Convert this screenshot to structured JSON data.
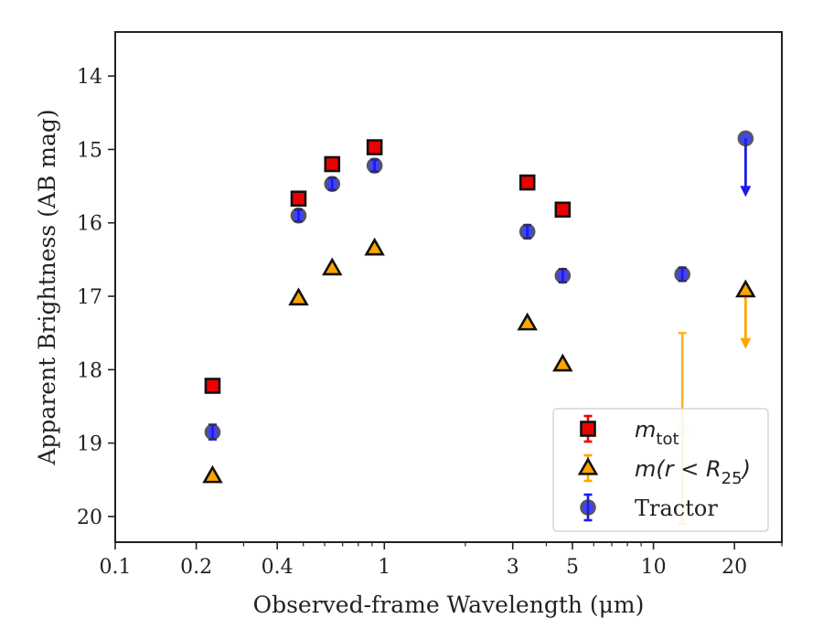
{
  "chart_data": {
    "type": "scatter",
    "title": "",
    "xlabel": "Observed-frame Wavelength (μm)",
    "ylabel": "Apparent Brightness (AB mag)",
    "xscale": "log",
    "xlim": [
      0.1,
      30
    ],
    "ylim": [
      20.35,
      13.4
    ],
    "y_inverted": true,
    "x_ticks": [
      {
        "value": 0.1,
        "label": "0.1"
      },
      {
        "value": 0.2,
        "label": "0.2"
      },
      {
        "value": 0.4,
        "label": "0.4"
      },
      {
        "value": 1,
        "label": "1"
      },
      {
        "value": 3,
        "label": "3"
      },
      {
        "value": 5,
        "label": "5"
      },
      {
        "value": 10,
        "label": "10"
      },
      {
        "value": 20,
        "label": "20"
      }
    ],
    "x_minor_ticks": [
      0.3,
      0.5,
      0.6,
      0.7,
      0.8,
      0.9,
      2,
      4,
      6,
      7,
      8,
      9,
      30
    ],
    "y_ticks": [
      {
        "value": 14,
        "label": "14"
      },
      {
        "value": 15,
        "label": "15"
      },
      {
        "value": 16,
        "label": "16"
      },
      {
        "value": 17,
        "label": "17"
      },
      {
        "value": 18,
        "label": "18"
      },
      {
        "value": 19,
        "label": "19"
      },
      {
        "value": 20,
        "label": "20"
      }
    ],
    "grid": false,
    "legend_position": "lower-right",
    "series": [
      {
        "name": "m_tot",
        "marker": "square",
        "color": "#ee0000",
        "edge_color": "#111111",
        "points": [
          {
            "x": 0.23,
            "y": 18.22,
            "err": 0.05
          },
          {
            "x": 0.48,
            "y": 15.67,
            "err": 0.04
          },
          {
            "x": 0.64,
            "y": 15.2,
            "err": 0.04
          },
          {
            "x": 0.92,
            "y": 14.97,
            "err": 0.04
          },
          {
            "x": 3.4,
            "y": 15.45,
            "err": 0.04
          },
          {
            "x": 4.6,
            "y": 15.82,
            "err": 0.04
          }
        ]
      },
      {
        "name": "m(r<R25)",
        "marker": "triangle",
        "color": "#ffa500",
        "edge_color": "#111111",
        "points": [
          {
            "x": 0.23,
            "y": 19.45,
            "err": 0.04
          },
          {
            "x": 0.48,
            "y": 17.03,
            "err": 0.04
          },
          {
            "x": 0.64,
            "y": 16.62,
            "err": 0.04
          },
          {
            "x": 0.92,
            "y": 16.35,
            "err": 0.04
          },
          {
            "x": 3.4,
            "y": 17.37,
            "err": 0.04
          },
          {
            "x": 4.6,
            "y": 17.93,
            "err": 0.04
          },
          {
            "x": 12.8,
            "y": 18.8,
            "err_low": 1.3,
            "err_high": 1.3,
            "faded": true
          },
          {
            "x": 22.0,
            "y": 16.92,
            "upper_limit": true
          }
        ]
      },
      {
        "name": "Tractor",
        "marker": "circle",
        "color": "#1a1aee",
        "edge_color": "#333333",
        "points": [
          {
            "x": 0.23,
            "y": 18.85,
            "err": 0.1
          },
          {
            "x": 0.48,
            "y": 15.9,
            "err": 0.08
          },
          {
            "x": 0.64,
            "y": 15.47,
            "err": 0.08
          },
          {
            "x": 0.92,
            "y": 15.22,
            "err": 0.08
          },
          {
            "x": 3.4,
            "y": 16.12,
            "err": 0.09
          },
          {
            "x": 4.6,
            "y": 16.72,
            "err": 0.09
          },
          {
            "x": 12.8,
            "y": 16.7,
            "err": 0.09
          },
          {
            "x": 22.0,
            "y": 14.85,
            "upper_limit": true
          }
        ]
      }
    ]
  },
  "legend": {
    "entries": [
      {
        "series": 0,
        "label_main": "m",
        "label_sub": "tot",
        "label_tail": ""
      },
      {
        "series": 1,
        "label_main": "m(r < R",
        "label_sub": "25",
        "label_tail": ")"
      },
      {
        "series": 2,
        "label_main": "Tractor",
        "label_sub": "",
        "label_tail": ""
      }
    ]
  }
}
